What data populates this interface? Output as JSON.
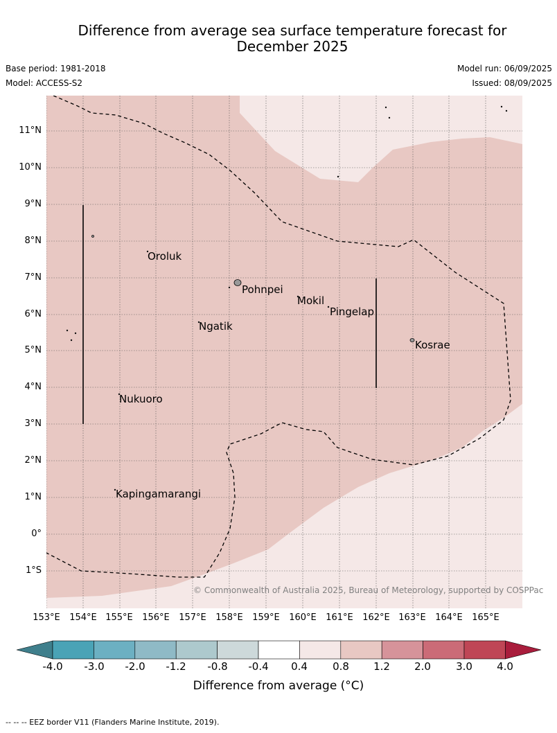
{
  "title_line1": "Difference from average sea surface temperature forecast for",
  "title_line2": "December 2025",
  "base_period": "Base period: 1981-2018",
  "model": "Model: ACCESS-S2",
  "model_run": "Model run: 06/09/2025",
  "issued": "Issued: 08/09/2025",
  "copyright": "© Commonwealth of Australia 2025, Bureau of Meteorology, supported by COSPPac",
  "lat_labels": [
    "11°N",
    "10°N",
    "9°N",
    "8°N",
    "7°N",
    "6°N",
    "5°N",
    "4°N",
    "3°N",
    "2°N",
    "1°N",
    "0°",
    "1°S"
  ],
  "lon_labels": [
    "153°E",
    "154°E",
    "155°E",
    "156°E",
    "157°E",
    "158°E",
    "159°E",
    "160°E",
    "161°E",
    "162°E",
    "163°E",
    "164°E",
    "165°E"
  ],
  "places": {
    "oroluk": "Oroluk",
    "pohnpei": "Pohnpei",
    "mokil": "Mokil",
    "pingelap": "Pingelap",
    "ngatik": "Ngatik",
    "kosrae": "Kosrae",
    "nukuoro": "Nukuoro",
    "kapingamarangi": "Kapingamarangi"
  },
  "colorbar": {
    "ticks": [
      "-4.0",
      "-3.0",
      "-2.0",
      "-1.2",
      "-0.8",
      "-0.4",
      "0.4",
      "0.8",
      "1.2",
      "2.0",
      "3.0",
      "4.0"
    ],
    "colors": [
      "#3f7f8c",
      "#4aa3b6",
      "#6cb0c2",
      "#8fbac6",
      "#adc9cd",
      "#cdd9da",
      "#ffffff",
      "#f5e8e7",
      "#e8c8c3",
      "#d6939a",
      "#cb6b77",
      "#bf4656",
      "#a91d3c"
    ],
    "label": "Difference from average (°C)"
  },
  "map_fill": {
    "warm": "#e8c8c3",
    "mild": "#f5e8e7"
  },
  "footer": "--  --  -- EEZ border V11 (Flanders Marine Institute, 2019)."
}
